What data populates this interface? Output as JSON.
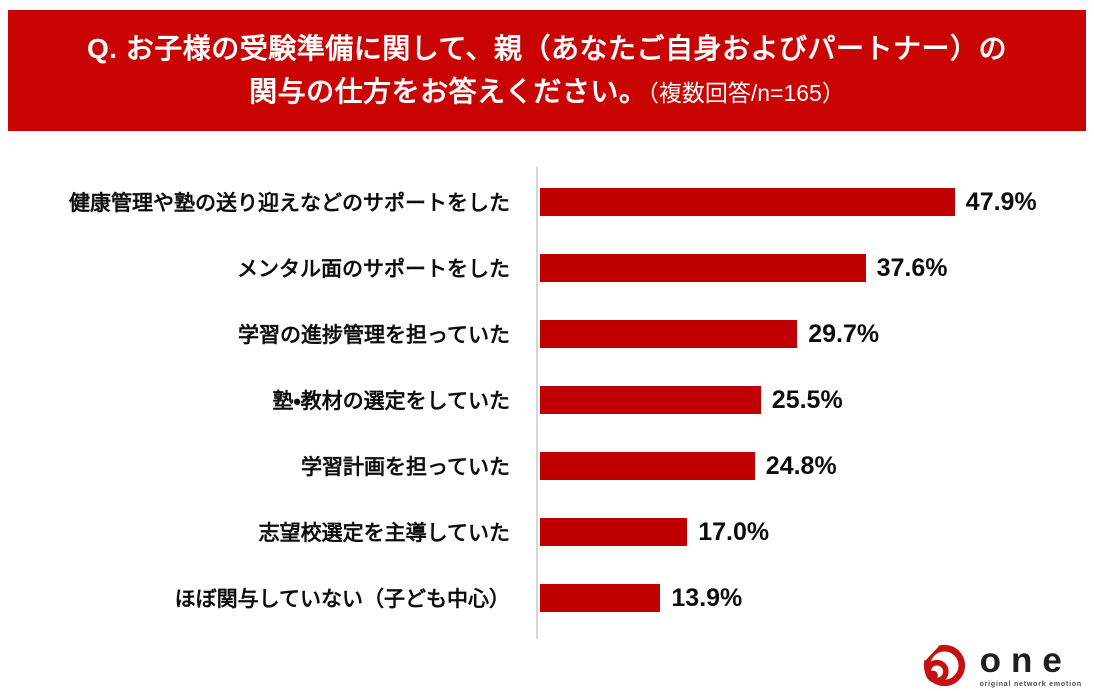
{
  "header": {
    "title_line1": "Q. お子様の受験準備に関して、親（あなたご自身およびパートナー）の",
    "title_line2": "関与の仕方をお答えください。",
    "title_suffix": "（複数回答/n=165）",
    "bg_color": "#ca0303",
    "text_color": "#ffffff"
  },
  "chart_data": {
    "type": "bar",
    "orientation": "horizontal",
    "title": "Q. お子様の受験準備に関して、親（あなたご自身およびパートナー）の関与の仕方をお答えください。",
    "subtitle": "（複数回答/n=165）",
    "sample_size": 165,
    "categories": [
      "健康管理や塾の送り迎えなどのサポートをした",
      "メンタル面のサポートをした",
      "学習の進捗管理を担っていた",
      "塾・教材の選定をしていた",
      "学習計画を担っていた",
      "志望校選定を主導していた",
      "ほぼ関与していない（子ども中心）"
    ],
    "values": [
      47.9,
      37.6,
      29.7,
      25.5,
      24.8,
      17.0,
      13.9
    ],
    "value_labels": [
      "47.9%",
      "37.6%",
      "29.7%",
      "25.5%",
      "24.8%",
      "17.0%",
      "13.9%"
    ],
    "xlabel": "",
    "ylabel": "",
    "xlim": [
      0,
      63
    ],
    "grid": false,
    "legend": false,
    "bar_color": "#c00000",
    "axis_color": "#d6d6d6"
  },
  "footer": {
    "logo_text": "one",
    "logo_tagline": "original network emotion",
    "logo_color": "#c41212"
  }
}
